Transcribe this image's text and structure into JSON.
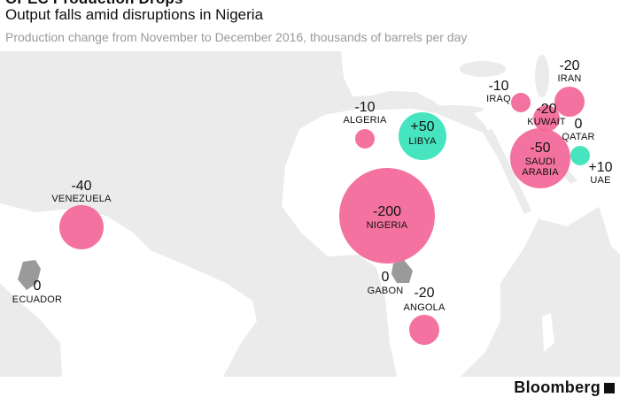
{
  "header": {
    "kicker": "OPEC Production Drops",
    "title": "Output falls amid disruptions in Nigeria",
    "subtitle": "Production change from November to December 2016, thousands of barrels per day"
  },
  "colors": {
    "decline": "#f36a9a",
    "increase": "#3de3bd",
    "land": "#ffffff",
    "water": "#ebebeb",
    "highlight_land": "#9a9a9a"
  },
  "chart_data": {
    "type": "bubble-map",
    "title": "Output falls amid disruptions in Nigeria",
    "subtitle": "Production change from November to December 2016, thousands of barrels per day",
    "unit": "thousands of barrels per day",
    "points": [
      {
        "country": "NIGERIA",
        "change": -200,
        "label": "-200"
      },
      {
        "country": "SAUDI ARABIA",
        "change": -50,
        "label": "-50"
      },
      {
        "country": "LIBYA",
        "change": 50,
        "label": "+50"
      },
      {
        "country": "VENEZUELA",
        "change": -40,
        "label": "-40"
      },
      {
        "country": "IRAN",
        "change": -20,
        "label": "-20"
      },
      {
        "country": "KUWAIT",
        "change": -20,
        "label": "-20"
      },
      {
        "country": "ANGOLA",
        "change": -20,
        "label": "-20"
      },
      {
        "country": "IRAQ",
        "change": -10,
        "label": "-10"
      },
      {
        "country": "ALGERIA",
        "change": -10,
        "label": "-10"
      },
      {
        "country": "UAE",
        "change": 10,
        "label": "+10"
      },
      {
        "country": "QATAR",
        "change": 0,
        "label": "0"
      },
      {
        "country": "GABON",
        "change": 0,
        "label": "0"
      },
      {
        "country": "ECUADOR",
        "change": 0,
        "label": "0"
      }
    ]
  },
  "brand": {
    "name": "Bloomberg"
  }
}
